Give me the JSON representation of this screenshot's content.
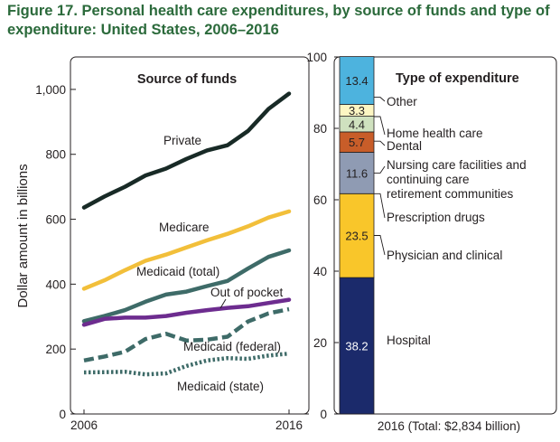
{
  "figure_title": "Figure 17. Personal health care expenditures, by source of funds and type of expenditure: United States, 2006–2016",
  "chart_data": [
    {
      "type": "line",
      "title": "Source of funds",
      "ylabel": "Dollar amount in billions",
      "xlabel": "",
      "x": [
        2006,
        2007,
        2008,
        2009,
        2010,
        2011,
        2012,
        2013,
        2014,
        2015,
        2016
      ],
      "xlim": [
        2006,
        2016
      ],
      "ylim": [
        0,
        1100
      ],
      "x_tick_labels": [
        "2006",
        "2016"
      ],
      "y_tick_labels": [
        "0",
        "200",
        "400",
        "600",
        "800",
        "1,000"
      ],
      "grid": false,
      "series": [
        {
          "name": "Private",
          "color": "#182a26",
          "style": "solid",
          "values": [
            636,
            670,
            700,
            735,
            756,
            786,
            812,
            828,
            872,
            940,
            987
          ]
        },
        {
          "name": "Medicare",
          "color": "#f2bf3a",
          "style": "solid",
          "values": [
            386,
            412,
            443,
            472,
            491,
            513,
            535,
            555,
            578,
            605,
            624
          ]
        },
        {
          "name": "Medicaid (total)",
          "color": "#3e6b68",
          "style": "solid",
          "values": [
            286,
            302,
            320,
            346,
            368,
            377,
            394,
            410,
            448,
            484,
            504
          ]
        },
        {
          "name": "Out of pocket",
          "color": "#6d2c8f",
          "style": "solid",
          "values": [
            275,
            293,
            297,
            297,
            302,
            312,
            320,
            327,
            332,
            342,
            352
          ]
        },
        {
          "name": "Medicaid (federal)",
          "color": "#3e6b68",
          "style": "dashed",
          "values": [
            165,
            177,
            192,
            231,
            247,
            226,
            229,
            238,
            285,
            310,
            323
          ]
        },
        {
          "name": "Medicaid (state)",
          "color": "#3e6b68",
          "style": "dotted",
          "values": [
            128,
            129,
            130,
            122,
            125,
            148,
            165,
            172,
            170,
            180,
            186
          ]
        }
      ]
    },
    {
      "type": "bar",
      "stacked": true,
      "title": "Type of expenditure",
      "categories": [
        "2016 (Total: $2,834  billion)"
      ],
      "ylim": [
        0,
        100
      ],
      "y_tick_labels": [
        "0",
        "20",
        "40",
        "60",
        "80",
        "100"
      ],
      "series": [
        {
          "name": "Hospital",
          "values": [
            38.2
          ],
          "color": "#1b2a6b",
          "label_color": "#ffffff"
        },
        {
          "name": "Physician and clinical",
          "values": [
            23.5
          ],
          "color": "#f9c62a",
          "label_color": "#231f20"
        },
        {
          "name": "Prescription drugs",
          "values": [
            0
          ],
          "color": "#ffffff",
          "label_color": "#231f20"
        },
        {
          "name": "Nursing care facilities and continuing care retirement communities",
          "values": [
            11.6
          ],
          "color": "#8f9bb3",
          "label_color": "#231f20"
        },
        {
          "name": "Dental",
          "values": [
            5.7
          ],
          "color": "#c85d29",
          "label_color": "#231f20"
        },
        {
          "name": "Home health care",
          "values": [
            4.4
          ],
          "color": "#cfe1bf",
          "label_color": "#231f20"
        },
        {
          "name": "Other",
          "values": [
            3.3
          ],
          "color": "#fdf6c3",
          "label_color": "#231f20"
        },
        {
          "name": "",
          "values": [
            13.4
          ],
          "color": "#4db3de",
          "label_color": "#231f20"
        }
      ],
      "category_labels": [
        [
          "Other"
        ],
        [
          "Home health care"
        ],
        [
          "Dental"
        ],
        [
          "Nursing care facilities and",
          "continuing care",
          "retirement communities"
        ],
        [
          "Prescription drugs"
        ],
        [
          "Physician and clinical"
        ],
        [
          "Hospital"
        ]
      ]
    }
  ]
}
